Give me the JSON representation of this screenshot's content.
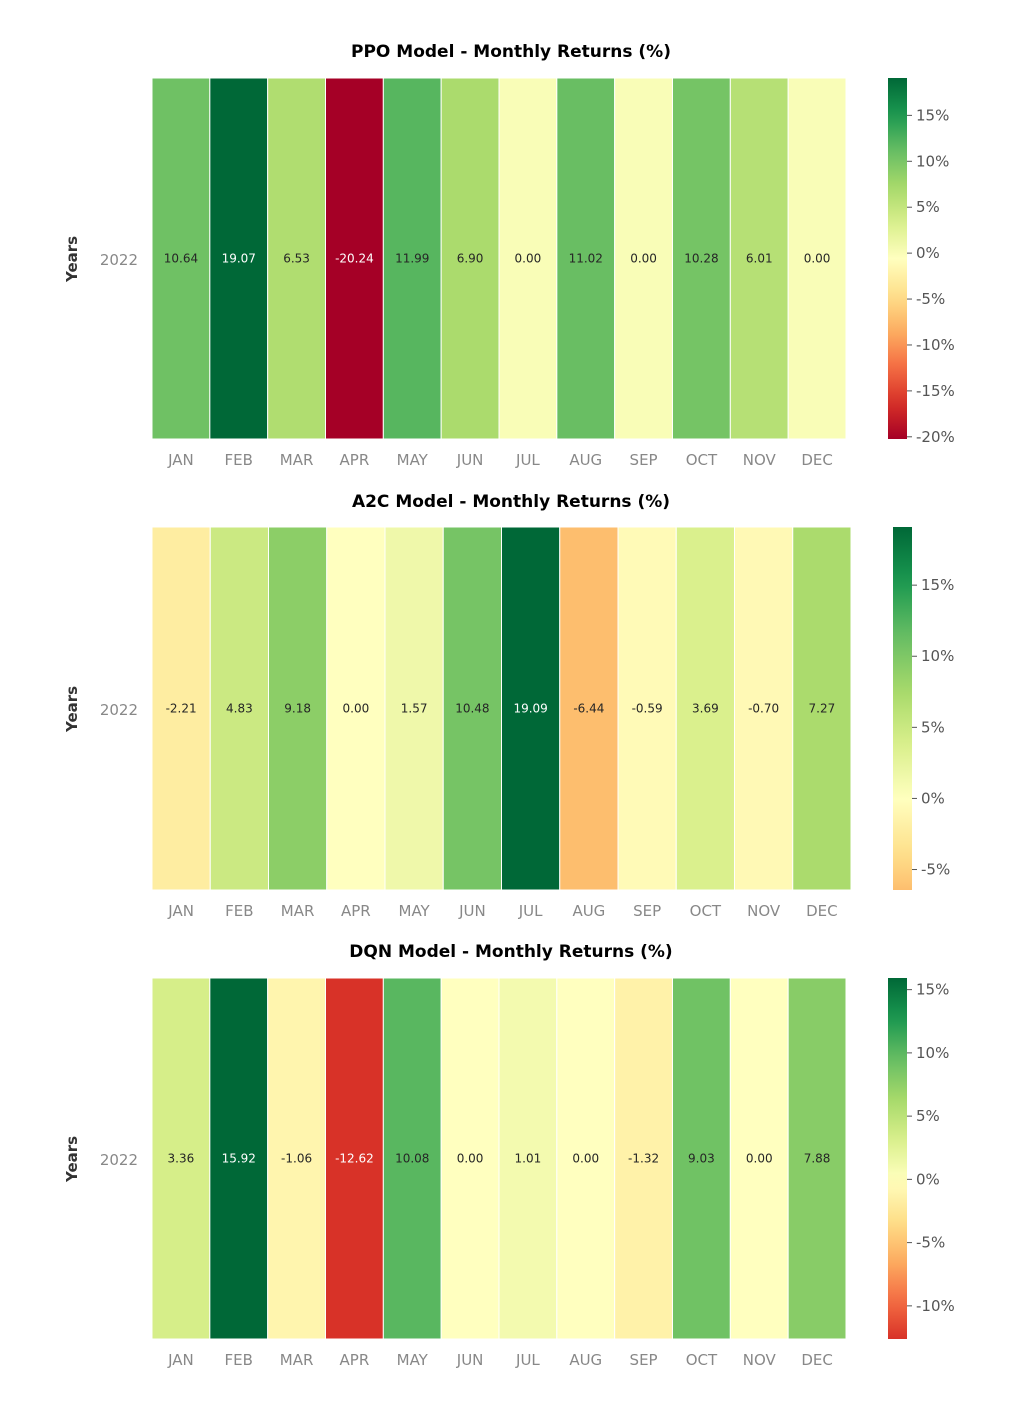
{
  "chart_data": [
    {
      "type": "heatmap",
      "title": "PPO Model - Monthly Returns (%)",
      "ylabel": "Years",
      "years": [
        "2022"
      ],
      "categories": [
        "JAN",
        "FEB",
        "MAR",
        "APR",
        "MAY",
        "JUN",
        "JUL",
        "AUG",
        "SEP",
        "OCT",
        "NOV",
        "DEC"
      ],
      "values": [
        10.64,
        19.07,
        6.53,
        -20.24,
        11.99,
        6.9,
        0.0,
        11.02,
        0.0,
        10.28,
        6.01,
        0.0
      ],
      "labels": [
        "10.64",
        "19.07",
        "6.53",
        "-20.24",
        "11.99",
        "6.90",
        "0.00",
        "11.02",
        "0.00",
        "10.28",
        "6.01",
        "0.00"
      ],
      "color_range": [
        -20.24,
        19.07
      ],
      "colorbar_ticks": [
        15,
        10,
        5,
        0,
        -5,
        -10,
        -15,
        -20
      ],
      "colorbar_labels": [
        "15%",
        "10%",
        "5%",
        "0%",
        "-5%",
        "-10%",
        "-15%",
        "-20%"
      ],
      "colormap": "RdYlGn"
    },
    {
      "type": "heatmap",
      "title": "A2C Model - Monthly Returns (%)",
      "ylabel": "Years",
      "years": [
        "2022"
      ],
      "categories": [
        "JAN",
        "FEB",
        "MAR",
        "APR",
        "MAY",
        "JUN",
        "JUL",
        "AUG",
        "SEP",
        "OCT",
        "NOV",
        "DEC"
      ],
      "values": [
        -2.21,
        4.83,
        9.18,
        0.0,
        1.57,
        10.48,
        19.09,
        -6.44,
        -0.59,
        3.69,
        -0.7,
        7.27
      ],
      "labels": [
        "-2.21",
        "4.83",
        "9.18",
        "0.00",
        "1.57",
        "10.48",
        "19.09",
        "-6.44",
        "-0.59",
        "3.69",
        "-0.70",
        "7.27"
      ],
      "color_range": [
        -19.09,
        19.09
      ],
      "colorbar_range": [
        -6.44,
        19.09
      ],
      "colorbar_ticks": [
        15,
        10,
        5,
        0,
        -5
      ],
      "colorbar_labels": [
        "15%",
        "10%",
        "5%",
        "0%",
        "-5%"
      ],
      "colormap": "RdYlGn"
    },
    {
      "type": "heatmap",
      "title": "DQN Model - Monthly Returns (%)",
      "ylabel": "Years",
      "years": [
        "2022"
      ],
      "categories": [
        "JAN",
        "FEB",
        "MAR",
        "APR",
        "MAY",
        "JUN",
        "JUL",
        "AUG",
        "SEP",
        "OCT",
        "NOV",
        "DEC"
      ],
      "values": [
        3.36,
        15.92,
        -1.06,
        -12.62,
        10.08,
        0.0,
        1.01,
        0.0,
        -1.32,
        9.03,
        0.0,
        7.88
      ],
      "labels": [
        "3.36",
        "15.92",
        "-1.06",
        "-12.62",
        "10.08",
        "0.00",
        "1.01",
        "0.00",
        "-1.32",
        "9.03",
        "0.00",
        "7.88"
      ],
      "color_range": [
        -15.92,
        15.92
      ],
      "colorbar_range": [
        -12.62,
        15.92
      ],
      "colorbar_ticks": [
        15,
        10,
        5,
        0,
        -5,
        -10
      ],
      "colorbar_labels": [
        "15%",
        "10%",
        "5%",
        "0%",
        "-5%",
        "-10%"
      ],
      "colormap": "RdYlGn"
    }
  ]
}
